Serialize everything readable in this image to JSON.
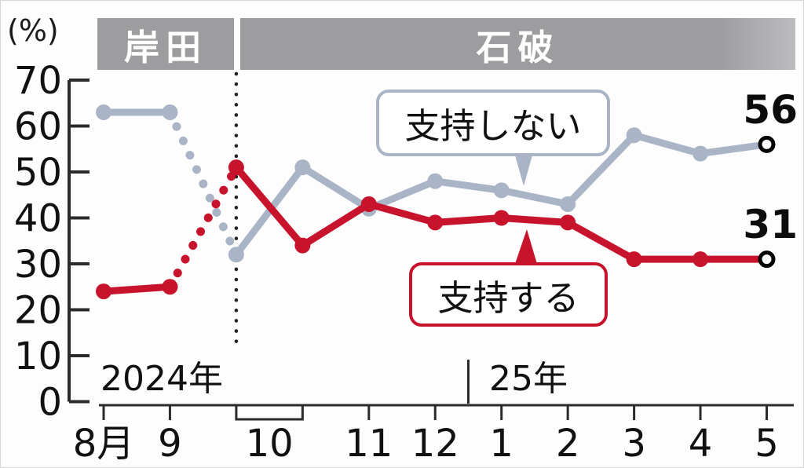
{
  "chart_data": {
    "type": "line",
    "unit_label": "(%)",
    "ylim": [
      0,
      70
    ],
    "yticks": [
      0,
      10,
      20,
      30,
      40,
      50,
      60,
      70
    ],
    "grid": "off",
    "legend_position": "callouts-inside-plot",
    "pm_periods": [
      {
        "label": "岸田"
      },
      {
        "label": "石破"
      }
    ],
    "x_labels": [
      {
        "label": "8月",
        "points": [
          0
        ]
      },
      {
        "label": "9",
        "points": [
          1
        ]
      },
      {
        "label": "10",
        "points": [
          2,
          3
        ]
      },
      {
        "label": "11",
        "points": [
          4
        ]
      },
      {
        "label": "12",
        "points": [
          5
        ]
      },
      {
        "label": "1",
        "points": [
          6
        ]
      },
      {
        "label": "2",
        "points": [
          7
        ]
      },
      {
        "label": "3",
        "points": [
          8
        ]
      },
      {
        "label": "4",
        "points": [
          9
        ]
      },
      {
        "label": "5",
        "points": [
          10
        ]
      }
    ],
    "year_labels": [
      {
        "text": "2024年"
      },
      {
        "text": "25年"
      }
    ],
    "year_divider_between_points": [
      5,
      6
    ],
    "transition": {
      "dotted_between_points": [
        1,
        2
      ],
      "divider_at_point": 2
    },
    "series": [
      {
        "name": "支持しない",
        "color": "#a9b5c7",
        "values": [
          63,
          63,
          32,
          51,
          42,
          48,
          46,
          43,
          58,
          54,
          56
        ],
        "end_label": "56",
        "last_point_style": "open"
      },
      {
        "name": "支持する",
        "color": "#c7132c",
        "values": [
          24,
          25,
          51,
          34,
          43,
          39,
          40,
          39,
          31,
          31,
          31
        ],
        "end_label": "31",
        "last_point_style": "open"
      }
    ],
    "callouts": [
      {
        "text": "支持しない"
      },
      {
        "text": "支持する"
      }
    ]
  }
}
